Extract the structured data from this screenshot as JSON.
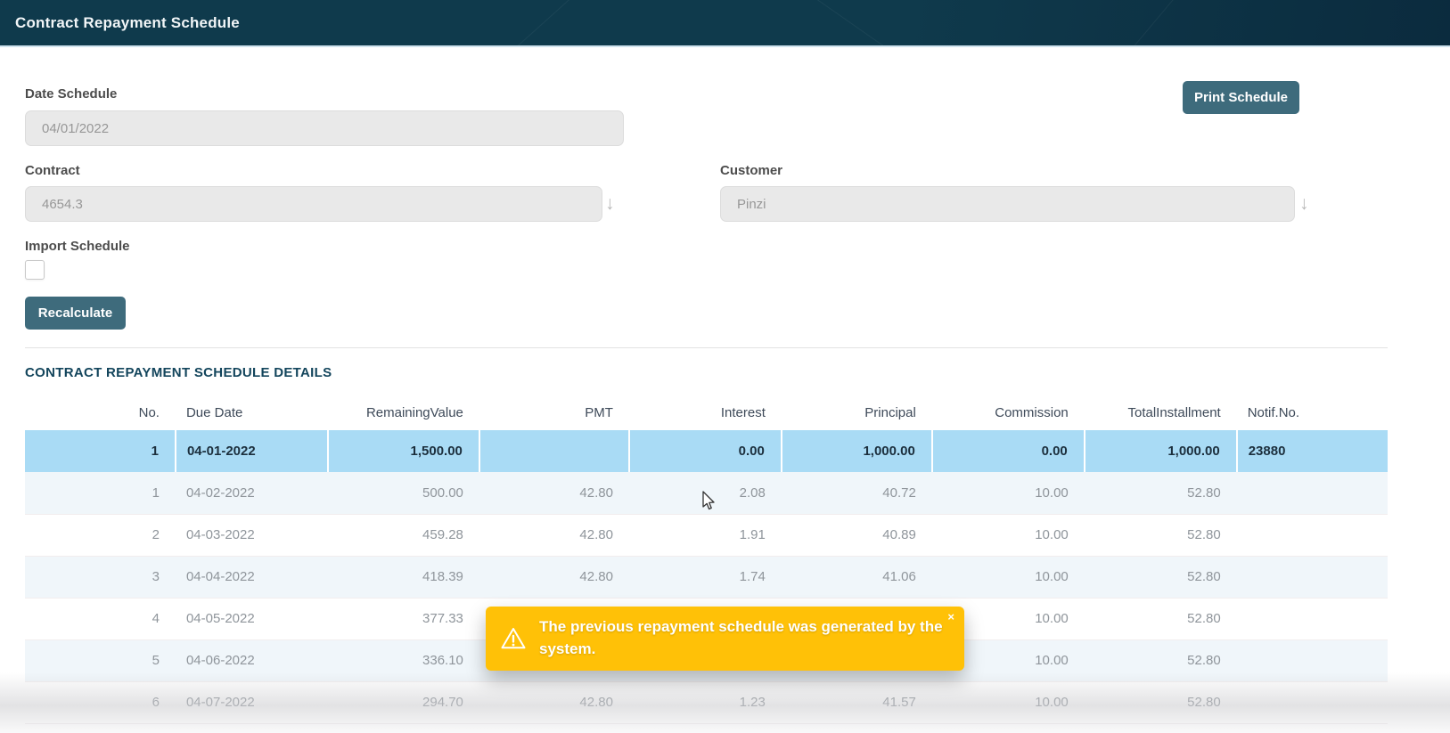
{
  "header": {
    "title": "Contract Repayment Schedule"
  },
  "form": {
    "date_schedule": {
      "label": "Date Schedule",
      "value": "04/01/2022"
    },
    "print_button": "Print Schedule",
    "contract": {
      "label": "Contract",
      "value": "4654.3"
    },
    "customer": {
      "label": "Customer",
      "value": "Pinzi"
    },
    "import_schedule": {
      "label": "Import Schedule",
      "checked": false
    },
    "recalculate_button": "Recalculate",
    "dropdown_icon": "↓"
  },
  "details": {
    "title": "CONTRACT REPAYMENT SCHEDULE DETAILS",
    "columns": [
      "No.",
      "Due Date",
      "RemainingValue",
      "PMT",
      "Interest",
      "Principal",
      "Commission",
      "TotalInstallment",
      "Notif.No."
    ],
    "rows": [
      {
        "no": "1",
        "due_date": "04-01-2022",
        "remaining": "1,500.00",
        "pmt": "",
        "interest": "0.00",
        "principal": "1,000.00",
        "commission": "0.00",
        "total": "1,000.00",
        "notif": "23880",
        "highlighted": true
      },
      {
        "no": "1",
        "due_date": "04-02-2022",
        "remaining": "500.00",
        "pmt": "42.80",
        "interest": "2.08",
        "principal": "40.72",
        "commission": "10.00",
        "total": "52.80",
        "notif": "",
        "highlighted": false
      },
      {
        "no": "2",
        "due_date": "04-03-2022",
        "remaining": "459.28",
        "pmt": "42.80",
        "interest": "1.91",
        "principal": "40.89",
        "commission": "10.00",
        "total": "52.80",
        "notif": "",
        "highlighted": false
      },
      {
        "no": "3",
        "due_date": "04-04-2022",
        "remaining": "418.39",
        "pmt": "42.80",
        "interest": "1.74",
        "principal": "41.06",
        "commission": "10.00",
        "total": "52.80",
        "notif": "",
        "highlighted": false
      },
      {
        "no": "4",
        "due_date": "04-05-2022",
        "remaining": "377.33",
        "pmt": "",
        "interest": "",
        "principal": "",
        "commission": "10.00",
        "total": "52.80",
        "notif": "",
        "highlighted": false
      },
      {
        "no": "5",
        "due_date": "04-06-2022",
        "remaining": "336.10",
        "pmt": "",
        "interest": "",
        "principal": "",
        "commission": "10.00",
        "total": "52.80",
        "notif": "",
        "highlighted": false
      },
      {
        "no": "6",
        "due_date": "04-07-2022",
        "remaining": "294.70",
        "pmt": "42.80",
        "interest": "1.23",
        "principal": "41.57",
        "commission": "10.00",
        "total": "52.80",
        "notif": "",
        "highlighted": false
      }
    ]
  },
  "toast": {
    "icon": "warning-triangle",
    "message": "The previous repayment schedule was generated by the system.",
    "close_label": "×"
  },
  "colors": {
    "topbar_bg": "#0f3a4c",
    "topbar_bg_right": "#0b2b3e",
    "accent": "#3e6b7c",
    "row_highlight": "#a9dbf5",
    "row_alt": "#f0f6fa",
    "toast_bg": "#ffc107",
    "title_color": "#13455c"
  }
}
